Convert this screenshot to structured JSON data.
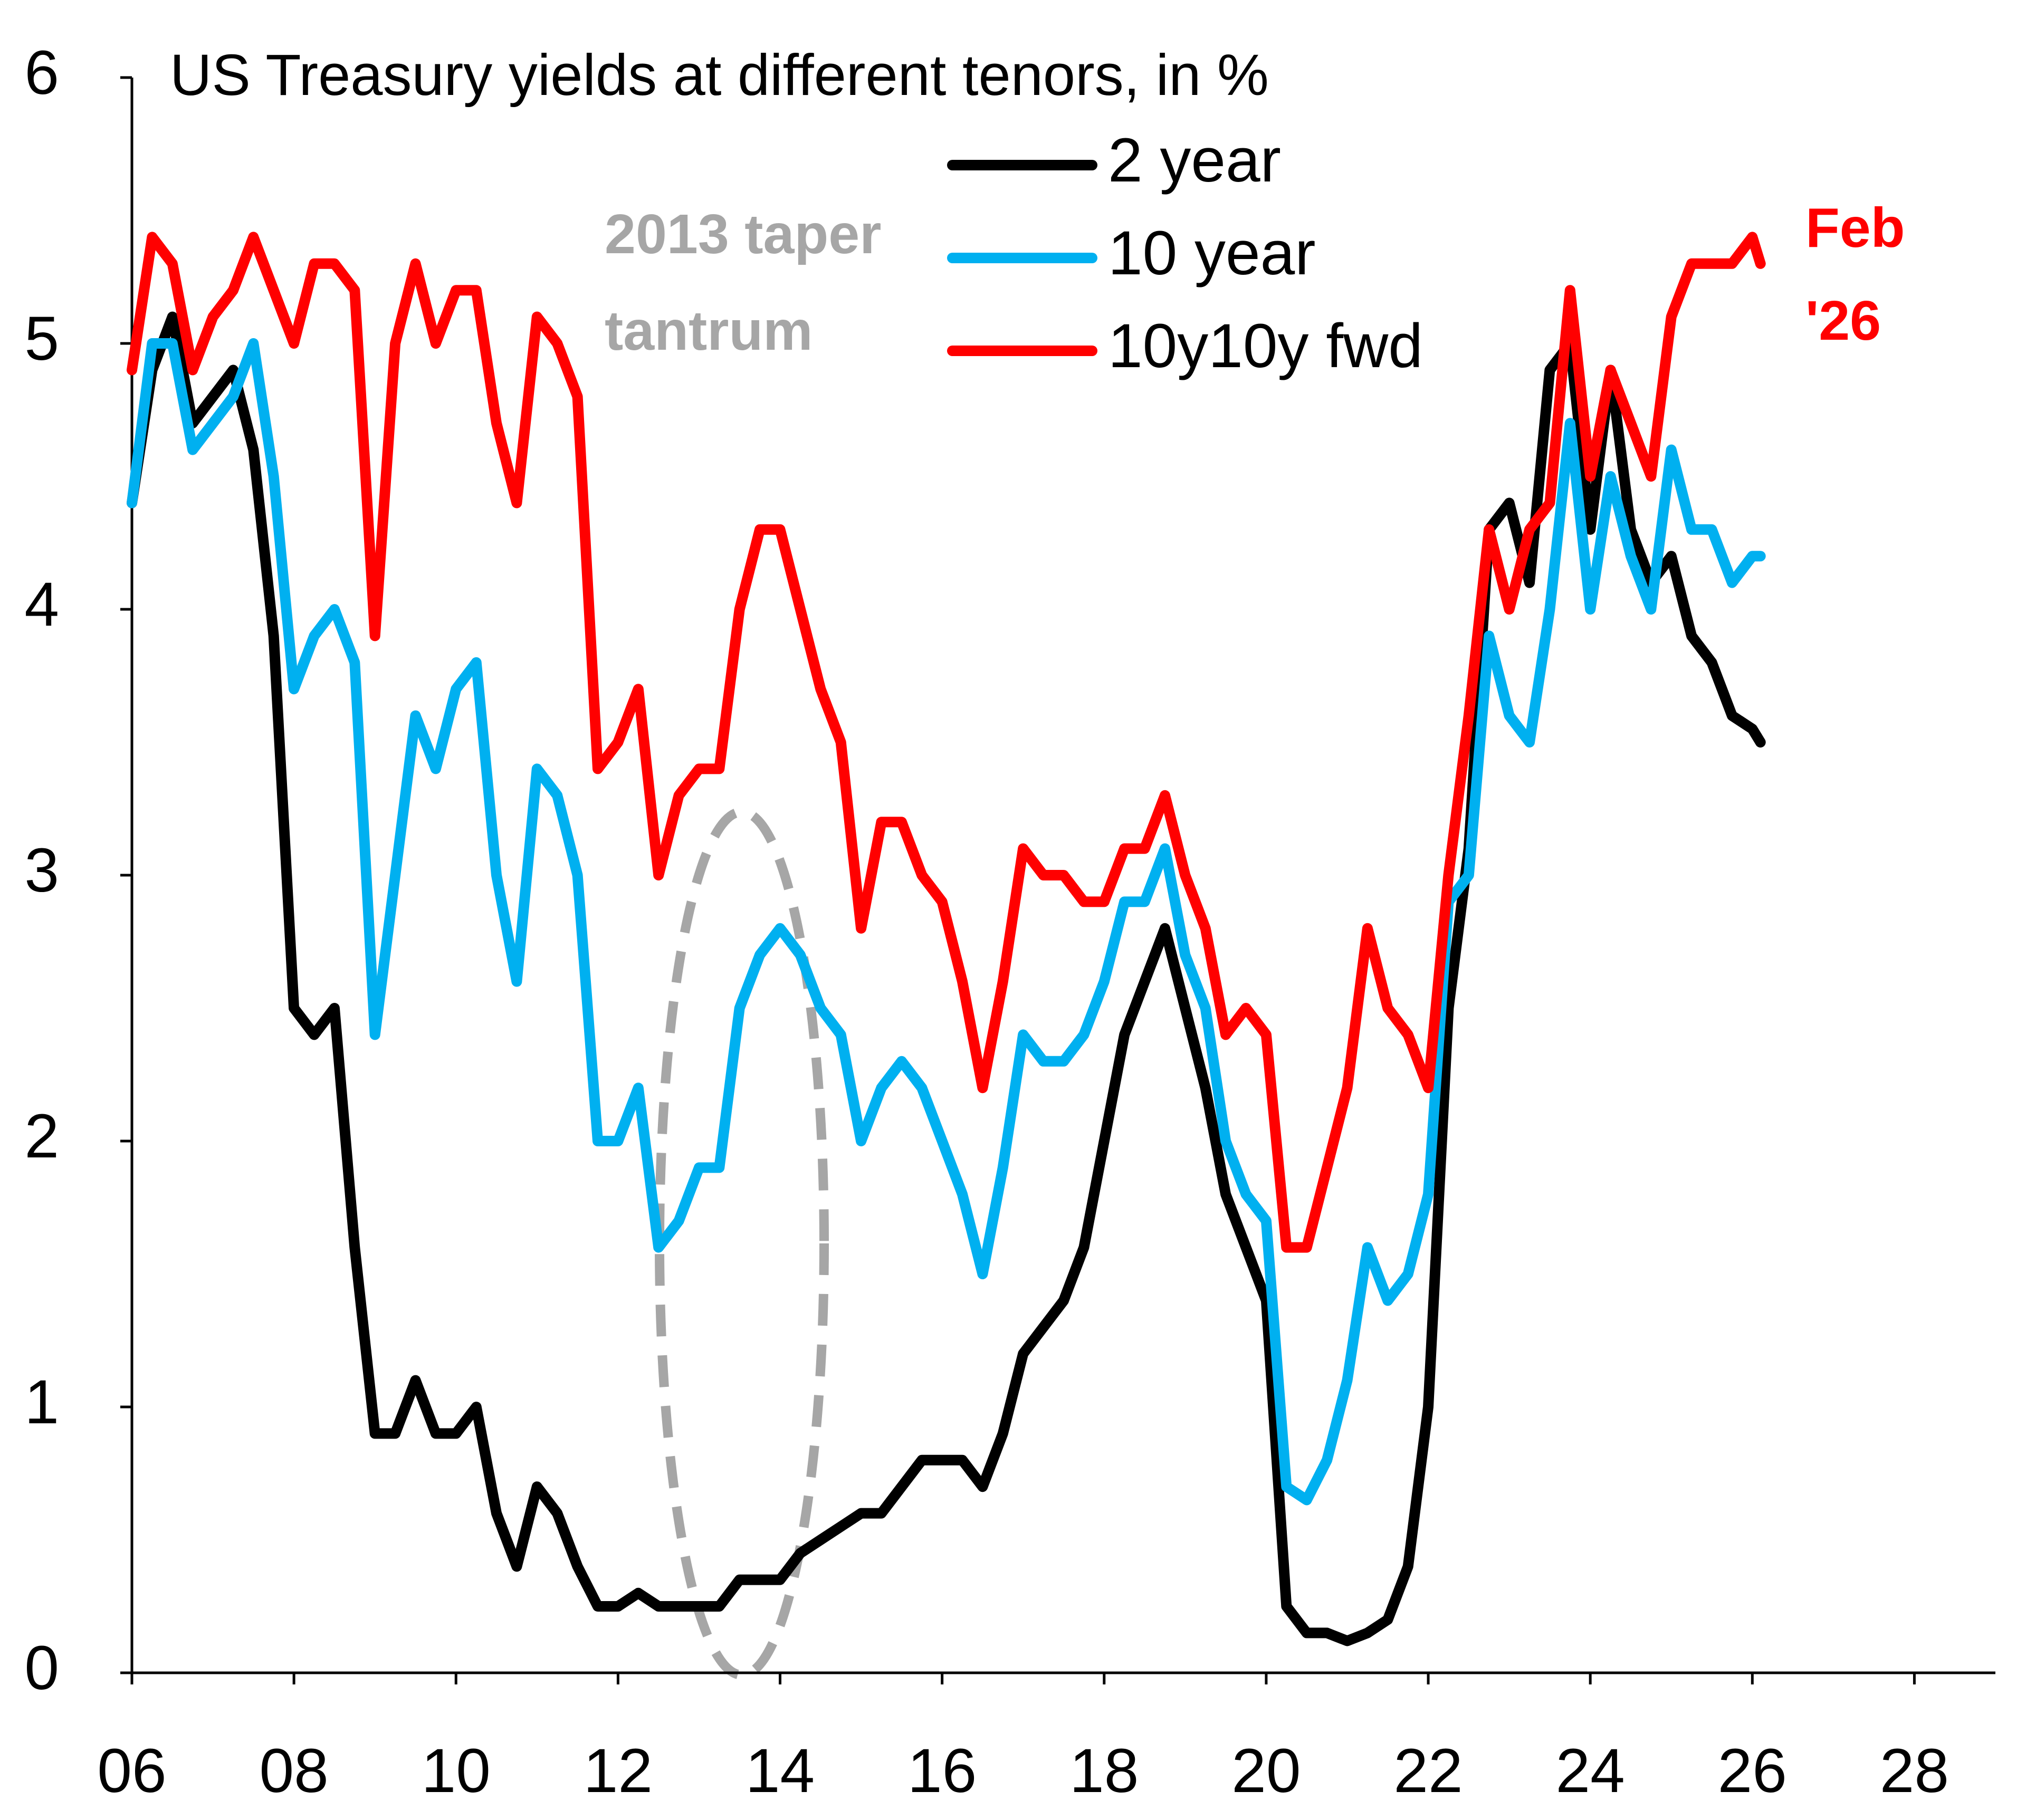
{
  "chart_data": {
    "type": "line",
    "title": "US Treasury yields at different tenors, in %",
    "x": [
      2006.0,
      2006.25,
      2006.5,
      2006.75,
      2007.0,
      2007.25,
      2007.5,
      2007.75,
      2008.0,
      2008.25,
      2008.5,
      2008.75,
      2009.0,
      2009.25,
      2009.5,
      2009.75,
      2010.0,
      2010.25,
      2010.5,
      2010.75,
      2011.0,
      2011.25,
      2011.5,
      2011.75,
      2012.0,
      2012.25,
      2012.5,
      2012.75,
      2013.0,
      2013.25,
      2013.5,
      2013.75,
      2014.0,
      2014.25,
      2014.5,
      2014.75,
      2015.0,
      2015.25,
      2015.5,
      2015.75,
      2016.0,
      2016.25,
      2016.5,
      2016.75,
      2017.0,
      2017.25,
      2017.5,
      2017.75,
      2018.0,
      2018.25,
      2018.5,
      2018.75,
      2019.0,
      2019.25,
      2019.5,
      2019.75,
      2020.0,
      2020.25,
      2020.5,
      2020.75,
      2021.0,
      2021.25,
      2021.5,
      2021.75,
      2022.0,
      2022.25,
      2022.5,
      2022.75,
      2023.0,
      2023.25,
      2023.5,
      2023.75,
      2024.0,
      2024.25,
      2024.5,
      2024.75,
      2025.0,
      2025.25,
      2025.5,
      2025.75,
      2026.0,
      2026.1
    ],
    "series": [
      {
        "name": "2 year",
        "color": "#000000",
        "values": [
          4.4,
          4.9,
          5.1,
          4.7,
          4.8,
          4.9,
          4.6,
          3.9,
          2.5,
          2.4,
          2.5,
          1.6,
          0.9,
          0.9,
          1.1,
          0.9,
          0.9,
          1.0,
          0.6,
          0.4,
          0.7,
          0.6,
          0.4,
          0.25,
          0.25,
          0.3,
          0.25,
          0.25,
          0.25,
          0.25,
          0.35,
          0.35,
          0.35,
          0.45,
          0.5,
          0.55,
          0.6,
          0.6,
          0.7,
          0.8,
          0.8,
          0.8,
          0.7,
          0.9,
          1.2,
          1.3,
          1.4,
          1.6,
          2.0,
          2.4,
          2.6,
          2.8,
          2.5,
          2.2,
          1.8,
          1.6,
          1.4,
          0.25,
          0.15,
          0.15,
          0.12,
          0.15,
          0.2,
          0.4,
          1.0,
          2.5,
          3.1,
          4.3,
          4.4,
          4.1,
          4.9,
          5.0,
          4.3,
          4.9,
          4.3,
          4.1,
          4.2,
          3.9,
          3.8,
          3.6,
          3.55,
          3.5
        ]
      },
      {
        "name": "10 year",
        "color": "#00b0f0",
        "values": [
          4.4,
          5.0,
          5.0,
          4.6,
          4.7,
          4.8,
          5.0,
          4.5,
          3.7,
          3.9,
          4.0,
          3.8,
          2.4,
          3.0,
          3.6,
          3.4,
          3.7,
          3.8,
          3.0,
          2.6,
          3.4,
          3.3,
          3.0,
          2.0,
          2.0,
          2.2,
          1.6,
          1.7,
          1.9,
          1.9,
          2.5,
          2.7,
          2.8,
          2.7,
          2.5,
          2.4,
          2.0,
          2.2,
          2.3,
          2.2,
          2.0,
          1.8,
          1.5,
          1.9,
          2.4,
          2.3,
          2.3,
          2.4,
          2.6,
          2.9,
          2.9,
          3.1,
          2.7,
          2.5,
          2.0,
          1.8,
          1.7,
          0.7,
          0.65,
          0.8,
          1.1,
          1.6,
          1.4,
          1.5,
          1.8,
          2.9,
          3.0,
          3.9,
          3.6,
          3.5,
          4.0,
          4.7,
          4.0,
          4.5,
          4.2,
          4.0,
          4.6,
          4.3,
          4.3,
          4.1,
          4.2,
          4.2
        ]
      },
      {
        "name": "10y10y fwd",
        "color": "#ff0000",
        "values": [
          4.9,
          5.4,
          5.3,
          4.9,
          5.1,
          5.2,
          5.4,
          5.2,
          5.0,
          5.3,
          5.3,
          5.2,
          3.9,
          5.0,
          5.3,
          5.0,
          5.2,
          5.2,
          4.7,
          4.4,
          5.1,
          5.0,
          4.8,
          3.4,
          3.5,
          3.7,
          3.0,
          3.3,
          3.4,
          3.4,
          4.0,
          4.3,
          4.3,
          4.0,
          3.7,
          3.5,
          2.8,
          3.2,
          3.2,
          3.0,
          2.9,
          2.6,
          2.2,
          2.6,
          3.1,
          3.0,
          3.0,
          2.9,
          2.9,
          3.1,
          3.1,
          3.3,
          3.0,
          2.8,
          2.4,
          2.5,
          2.4,
          1.6,
          1.6,
          1.9,
          2.2,
          2.8,
          2.5,
          2.4,
          2.2,
          3.0,
          3.6,
          4.3,
          4.0,
          4.3,
          4.4,
          5.2,
          4.5,
          4.9,
          4.7,
          4.5,
          5.1,
          5.3,
          5.3,
          5.3,
          5.4,
          5.3
        ]
      }
    ],
    "xlim": [
      2006,
      2029
    ],
    "xticks": [
      {
        "value": 2006,
        "label": "06"
      },
      {
        "value": 2008,
        "label": "08"
      },
      {
        "value": 2010,
        "label": "10"
      },
      {
        "value": 2012,
        "label": "12"
      },
      {
        "value": 2014,
        "label": "14"
      },
      {
        "value": 2016,
        "label": "16"
      },
      {
        "value": 2018,
        "label": "18"
      },
      {
        "value": 2020,
        "label": "20"
      },
      {
        "value": 2022,
        "label": "22"
      },
      {
        "value": 2024,
        "label": "24"
      },
      {
        "value": 2026,
        "label": "26"
      },
      {
        "value": 2028,
        "label": "28"
      }
    ],
    "ylim": [
      0,
      6
    ],
    "yticks": [
      0,
      1,
      2,
      3,
      4,
      5,
      6
    ],
    "grid": false,
    "legend": "top",
    "annotations": [
      {
        "lines": [
          "2013 taper",
          "tantrum"
        ],
        "color": "#a6a6a6"
      },
      {
        "lines": [
          "Feb",
          "'26"
        ],
        "color": "#ff0000"
      }
    ]
  }
}
